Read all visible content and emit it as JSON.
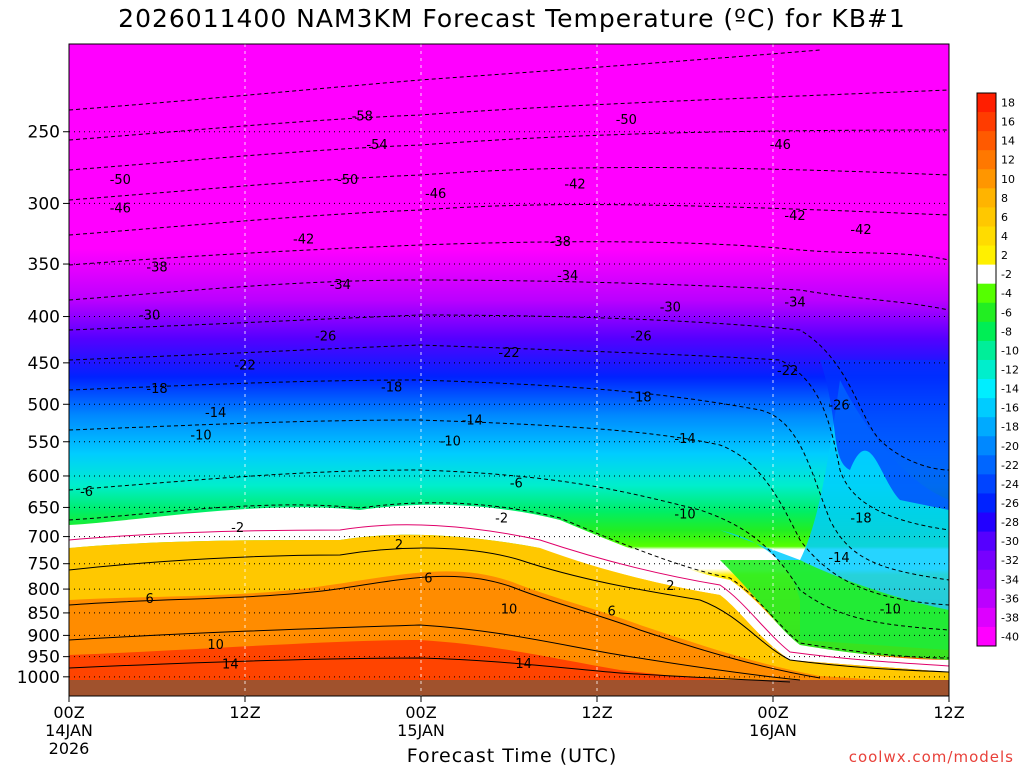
{
  "chart_data": {
    "type": "heatmap",
    "title": "2026011400 NAM3KM Forecast Temperature (ºC) for KB#1",
    "xlabel": "Forecast Time (UTC)",
    "ylabel": "",
    "y_scale": "log (pressure, hPa, inverted)",
    "y_ticks": [
      250,
      300,
      350,
      400,
      450,
      500,
      550,
      600,
      650,
      700,
      750,
      800,
      850,
      900,
      950,
      1000
    ],
    "ylim": [
      1050,
      200
    ],
    "x_ticks": [
      {
        "value": 0,
        "label": "00Z",
        "sub": "14JAN",
        "sub2": "2026"
      },
      {
        "value": 12,
        "label": "12Z",
        "sub": "",
        "sub2": ""
      },
      {
        "value": 24,
        "label": "00Z",
        "sub": "15JAN",
        "sub2": ""
      },
      {
        "value": 36,
        "label": "12Z",
        "sub": "",
        "sub2": ""
      },
      {
        "value": 48,
        "label": "00Z",
        "sub": "16JAN",
        "sub2": ""
      },
      {
        "value": 60,
        "label": "12Z",
        "sub": "",
        "sub2": ""
      }
    ],
    "xlim": [
      0,
      60
    ],
    "colorbar": {
      "labels": [
        18,
        16,
        14,
        12,
        10,
        8,
        6,
        4,
        2,
        -2,
        -4,
        -6,
        -8,
        -10,
        -12,
        -14,
        -16,
        -18,
        -20,
        -22,
        -24,
        -26,
        -28,
        -30,
        -32,
        -34,
        -36,
        -38,
        -40
      ],
      "colors": [
        "#ff1e00",
        "#ff3c00",
        "#ff5a00",
        "#ff7800",
        "#ff9600",
        "#ffb400",
        "#ffc800",
        "#ffdc00",
        "#fff000",
        "#ffffff",
        "#55ff00",
        "#22ee22",
        "#00ee55",
        "#00ee99",
        "#00eecc",
        "#00eeff",
        "#00ccff",
        "#00aaff",
        "#0088ff",
        "#0066ff",
        "#0044ff",
        "#0022ff",
        "#2200ff",
        "#5500ff",
        "#7700ff",
        "#9900ff",
        "#bb00ff",
        "#dd00ff",
        "#ff00ff"
      ]
    },
    "contour_labels": [
      {
        "x": 20,
        "p": 240,
        "t": "-58"
      },
      {
        "x": 21,
        "p": 258,
        "t": "-54"
      },
      {
        "x": 19,
        "p": 282,
        "t": "-50"
      },
      {
        "x": 38,
        "p": 242,
        "t": "-50"
      },
      {
        "x": 48.5,
        "p": 258,
        "t": "-46"
      },
      {
        "x": 3.5,
        "p": 282,
        "t": "-50"
      },
      {
        "x": 25,
        "p": 292,
        "t": "-46"
      },
      {
        "x": 34.5,
        "p": 285,
        "t": "-42"
      },
      {
        "x": 3.5,
        "p": 303,
        "t": "-46"
      },
      {
        "x": 16,
        "p": 328,
        "t": "-42"
      },
      {
        "x": 33.5,
        "p": 330,
        "t": "-38"
      },
      {
        "x": 49.5,
        "p": 309,
        "t": "-42"
      },
      {
        "x": 54,
        "p": 320,
        "t": "-42"
      },
      {
        "x": 6,
        "p": 352,
        "t": "-38"
      },
      {
        "x": 18.5,
        "p": 368,
        "t": "-34"
      },
      {
        "x": 34,
        "p": 360,
        "t": "-34"
      },
      {
        "x": 5.5,
        "p": 398,
        "t": "-30"
      },
      {
        "x": 41,
        "p": 390,
        "t": "-30"
      },
      {
        "x": 49.5,
        "p": 385,
        "t": "-34"
      },
      {
        "x": 17.5,
        "p": 420,
        "t": "-26"
      },
      {
        "x": 39,
        "p": 420,
        "t": "-26"
      },
      {
        "x": 12,
        "p": 452,
        "t": "-22"
      },
      {
        "x": 30,
        "p": 438,
        "t": "-22"
      },
      {
        "x": 49,
        "p": 458,
        "t": "-22"
      },
      {
        "x": 6,
        "p": 480,
        "t": "-18"
      },
      {
        "x": 22,
        "p": 478,
        "t": "-18"
      },
      {
        "x": 39,
        "p": 490,
        "t": "-18"
      },
      {
        "x": 52.5,
        "p": 500,
        "t": "-26"
      },
      {
        "x": 10,
        "p": 510,
        "t": "-14"
      },
      {
        "x": 27.5,
        "p": 520,
        "t": "-14"
      },
      {
        "x": 42,
        "p": 545,
        "t": "-14"
      },
      {
        "x": 9,
        "p": 540,
        "t": "-10"
      },
      {
        "x": 26,
        "p": 548,
        "t": "-10"
      },
      {
        "x": 1.2,
        "p": 623,
        "t": "-6"
      },
      {
        "x": 30.5,
        "p": 610,
        "t": "-6"
      },
      {
        "x": 42,
        "p": 660,
        "t": "-10"
      },
      {
        "x": 54,
        "p": 667,
        "t": "-18"
      },
      {
        "x": 11.5,
        "p": 683,
        "t": "-2"
      },
      {
        "x": 29.5,
        "p": 667,
        "t": "-2"
      },
      {
        "x": 52.5,
        "p": 737,
        "t": "-14"
      },
      {
        "x": 56,
        "p": 840,
        "t": "-10"
      },
      {
        "x": 22.5,
        "p": 713,
        "t": "2"
      },
      {
        "x": 41,
        "p": 792,
        "t": "2"
      },
      {
        "x": 5.5,
        "p": 818,
        "t": "6"
      },
      {
        "x": 24.5,
        "p": 777,
        "t": "6"
      },
      {
        "x": 37,
        "p": 845,
        "t": "6"
      },
      {
        "x": 30,
        "p": 840,
        "t": "10"
      },
      {
        "x": 10,
        "p": 920,
        "t": "10"
      },
      {
        "x": 11,
        "p": 967,
        "t": "14"
      },
      {
        "x": 31,
        "p": 965,
        "t": "14"
      }
    ],
    "watermark": "coolwx.com/models"
  }
}
